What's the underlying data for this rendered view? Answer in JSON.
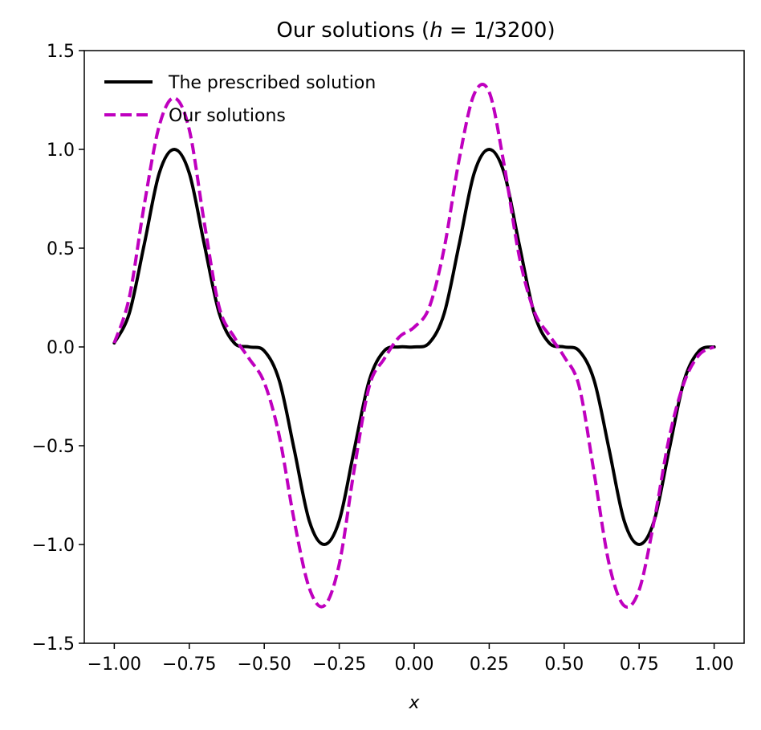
{
  "chart_data": {
    "type": "line",
    "title": "Our solutions (h = 1/3200)",
    "title_parts": {
      "prefix": "Our solutions (",
      "var": "h",
      "rest": " = 1/3200)"
    },
    "xlabel": "x",
    "ylabel": "",
    "xlim": [
      -1.1,
      1.1
    ],
    "ylim": [
      -1.5,
      1.5
    ],
    "xticks": [
      -1.0,
      -0.75,
      -0.5,
      -0.25,
      0.0,
      0.25,
      0.5,
      0.75,
      1.0
    ],
    "xtick_labels": [
      "−1.00",
      "−0.75",
      "−0.50",
      "−0.25",
      "0.00",
      "0.25",
      "0.50",
      "0.75",
      "1.00"
    ],
    "yticks": [
      -1.5,
      -1.0,
      -0.5,
      0.0,
      0.5,
      1.0,
      1.5
    ],
    "ytick_labels": [
      "−1.5",
      "−1.0",
      "−0.5",
      "0.0",
      "0.5",
      "1.0",
      "1.5"
    ],
    "grid": false,
    "legend_position": "upper-left",
    "series": [
      {
        "name": "The prescribed solution",
        "color": "#000000",
        "style": "solid",
        "x": [
          -1.0,
          -0.95,
          -0.9,
          -0.85,
          -0.8,
          -0.75,
          -0.7,
          -0.65,
          -0.6,
          -0.55,
          -0.5,
          -0.45,
          -0.4,
          -0.35,
          -0.3,
          -0.25,
          -0.2,
          -0.15,
          -0.1,
          -0.05,
          0.0,
          0.05,
          0.1,
          0.15,
          0.2,
          0.25,
          0.3,
          0.35,
          0.4,
          0.45,
          0.5,
          0.55,
          0.6,
          0.65,
          0.7,
          0.75,
          0.8,
          0.85,
          0.9,
          0.95,
          1.0
        ],
        "y": [
          0.02,
          0.17,
          0.52,
          0.88,
          1.0,
          0.88,
          0.52,
          0.17,
          0.02,
          0.0,
          -0.02,
          -0.17,
          -0.52,
          -0.88,
          -1.0,
          -0.88,
          -0.52,
          -0.17,
          -0.02,
          0.0,
          0.0,
          0.02,
          0.17,
          0.52,
          0.88,
          1.0,
          0.88,
          0.52,
          0.17,
          0.02,
          0.0,
          -0.02,
          -0.17,
          -0.52,
          -0.88,
          -1.0,
          -0.88,
          -0.52,
          -0.17,
          -0.02,
          0.0
        ]
      },
      {
        "name": "Our solutions",
        "color": "#bf00bf",
        "style": "dashed",
        "x": [
          -1.0,
          -0.95,
          -0.9,
          -0.85,
          -0.8,
          -0.75,
          -0.7,
          -0.65,
          -0.6,
          -0.55,
          -0.5,
          -0.45,
          -0.4,
          -0.35,
          -0.3,
          -0.25,
          -0.2,
          -0.15,
          -0.1,
          -0.05,
          0.0,
          0.05,
          0.1,
          0.15,
          0.2,
          0.25,
          0.3,
          0.35,
          0.4,
          0.45,
          0.5,
          0.55,
          0.6,
          0.65,
          0.7,
          0.75,
          0.8,
          0.85,
          0.9,
          0.95,
          1.0
        ],
        "y": [
          0.02,
          0.25,
          0.72,
          1.12,
          1.26,
          1.1,
          0.63,
          0.2,
          0.05,
          -0.06,
          -0.18,
          -0.45,
          -0.88,
          -1.22,
          -1.31,
          -1.1,
          -0.62,
          -0.2,
          -0.06,
          0.05,
          0.1,
          0.2,
          0.5,
          0.95,
          1.28,
          1.29,
          0.92,
          0.46,
          0.18,
          0.06,
          -0.05,
          -0.2,
          -0.64,
          -1.1,
          -1.31,
          -1.23,
          -0.88,
          -0.46,
          -0.18,
          -0.04,
          0.0
        ]
      }
    ]
  }
}
